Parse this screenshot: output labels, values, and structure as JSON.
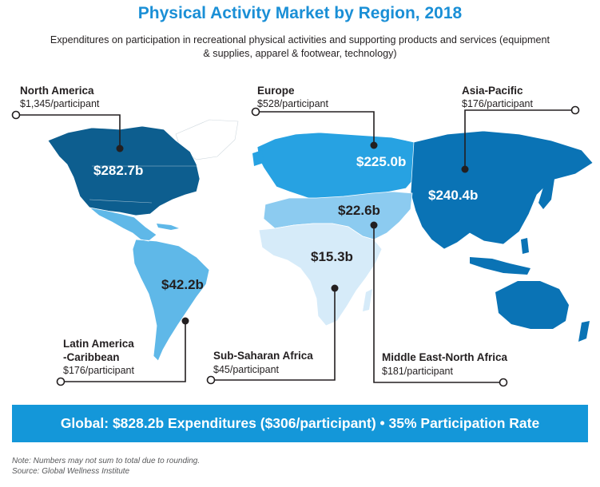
{
  "title": "Physical Activity Market by Region, 2018",
  "subtitle": "Expenditures on participation in recreational physical activities and supporting products and services (equipment & supplies, apparel & footwear, technology)",
  "regions": {
    "north_america": {
      "name": "North America",
      "per_participant": "$1,345/participant",
      "value": "$282.7b",
      "color": "#0d5e8f"
    },
    "europe": {
      "name": "Europe",
      "per_participant": "$528/participant",
      "value": "$225.0b",
      "color": "#27a2e2"
    },
    "asia_pacific": {
      "name": "Asia-Pacific",
      "per_participant": "$176/participant",
      "value": "$240.4b",
      "color": "#0a73b5"
    },
    "latin_america": {
      "name_line1": "Latin America",
      "name_line2": "-Caribbean",
      "per_participant": "$176/participant",
      "value": "$42.2b",
      "color": "#5fb8e8"
    },
    "sub_saharan_africa": {
      "name": "Sub-Saharan Africa",
      "per_participant": "$45/participant",
      "value": "$15.3b",
      "color": "#d6ebf9"
    },
    "mena": {
      "name": "Middle East-North Africa",
      "per_participant": "$181/participant",
      "value": "$22.6b",
      "color": "#8ccbf0"
    }
  },
  "banner": "Global:  $828.2b Expenditures ($306/participant) • 35% Participation Rate",
  "note": "Note: Numbers may not sum to total due to rounding.",
  "source": "Source: Global Wellness Institute"
}
